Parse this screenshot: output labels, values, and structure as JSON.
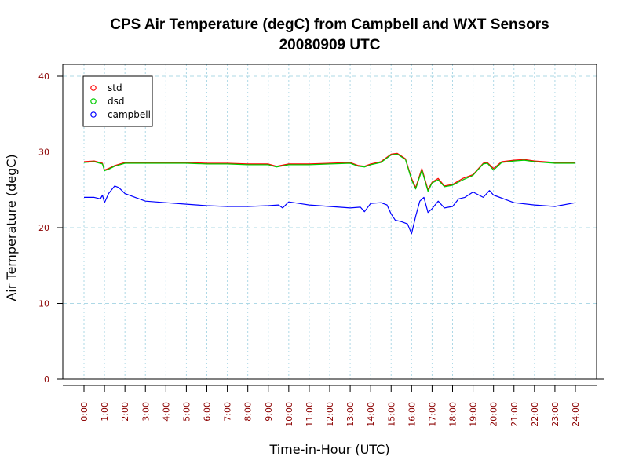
{
  "chart_data": {
    "type": "line",
    "title": "CPS Air Temperature (degC) from Campbell and WXT Sensors",
    "subtitle": "20080909  UTC",
    "xlabel": "Time-in-Hour (UTC)",
    "ylabel": "Air Temperature (degC)",
    "xlim": [
      0,
      24
    ],
    "ylim": [
      0,
      40
    ],
    "grid": true,
    "legend_position": "top-left",
    "x_tick_labels": [
      "0:00",
      "1:00",
      "2:00",
      "3:00",
      "4:00",
      "5:00",
      "6:00",
      "7:00",
      "8:00",
      "9:00",
      "10:00",
      "11:00",
      "12:00",
      "13:00",
      "14:00",
      "15:00",
      "16:00",
      "17:00",
      "18:00",
      "19:00",
      "20:00",
      "21:00",
      "22:00",
      "23:00",
      "24:00"
    ],
    "y_ticks": [
      0,
      10,
      20,
      30,
      40
    ],
    "y_tick_labels": [
      "0",
      "10",
      "20",
      "30",
      "40"
    ],
    "tick_label_color": "#8b0000",
    "grid_color": "#add8e6",
    "series": [
      {
        "name": "std",
        "color": "#ff0000",
        "x": [
          0,
          0.5,
          0.9,
          1.0,
          1.2,
          1.5,
          2.0,
          3.0,
          4.0,
          5.0,
          6.0,
          7.0,
          8.0,
          9.0,
          9.4,
          10.0,
          11.0,
          12.0,
          13.0,
          13.4,
          13.7,
          14.0,
          14.5,
          15.0,
          15.3,
          15.7,
          16.0,
          16.2,
          16.5,
          16.8,
          17.0,
          17.3,
          17.6,
          18.0,
          18.5,
          19.0,
          19.5,
          19.7,
          20.0,
          20.4,
          21.0,
          21.5,
          22.0,
          23.0,
          24.0
        ],
        "values": [
          28.7,
          28.8,
          28.5,
          27.6,
          27.8,
          28.2,
          28.6,
          28.6,
          28.6,
          28.6,
          28.5,
          28.5,
          28.4,
          28.4,
          28.1,
          28.4,
          28.4,
          28.5,
          28.6,
          28.2,
          28.1,
          28.4,
          28.7,
          29.7,
          29.8,
          29.1,
          26.5,
          25.3,
          27.8,
          25.0,
          26.0,
          26.5,
          25.5,
          25.7,
          26.5,
          27.0,
          28.5,
          28.6,
          27.8,
          28.7,
          28.9,
          29.0,
          28.8,
          28.6,
          28.6
        ]
      },
      {
        "name": "dsd",
        "color": "#00cc00",
        "x": [
          0,
          0.5,
          0.9,
          1.0,
          1.2,
          1.5,
          2.0,
          3.0,
          4.0,
          5.0,
          6.0,
          7.0,
          8.0,
          9.0,
          9.4,
          10.0,
          11.0,
          12.0,
          13.0,
          13.4,
          13.7,
          14.0,
          14.5,
          15.0,
          15.3,
          15.7,
          16.0,
          16.2,
          16.5,
          16.8,
          17.0,
          17.3,
          17.6,
          18.0,
          18.5,
          19.0,
          19.5,
          19.7,
          20.0,
          20.4,
          21.0,
          21.5,
          22.0,
          23.0,
          24.0
        ],
        "values": [
          28.6,
          28.7,
          28.4,
          27.5,
          27.7,
          28.1,
          28.5,
          28.5,
          28.5,
          28.5,
          28.4,
          28.4,
          28.3,
          28.3,
          28.0,
          28.3,
          28.3,
          28.4,
          28.5,
          28.1,
          28.0,
          28.3,
          28.6,
          29.6,
          29.7,
          29.0,
          26.3,
          25.1,
          27.6,
          24.8,
          25.9,
          26.3,
          25.4,
          25.6,
          26.3,
          26.9,
          28.4,
          28.5,
          27.6,
          28.6,
          28.8,
          28.9,
          28.7,
          28.5,
          28.5
        ]
      },
      {
        "name": "campbell",
        "color": "#0000ff",
        "x": [
          0,
          0.5,
          0.8,
          0.9,
          1.0,
          1.2,
          1.5,
          1.7,
          2.0,
          2.5,
          3.0,
          4.0,
          5.0,
          6.0,
          7.0,
          8.0,
          9.0,
          9.5,
          9.7,
          10.0,
          11.0,
          12.0,
          13.0,
          13.5,
          13.7,
          14.0,
          14.5,
          14.8,
          15.0,
          15.2,
          15.5,
          15.8,
          16.0,
          16.2,
          16.4,
          16.6,
          16.8,
          17.0,
          17.3,
          17.6,
          18.0,
          18.3,
          18.6,
          19.0,
          19.5,
          19.8,
          20.0,
          20.5,
          21.0,
          22.0,
          23.0,
          24.0
        ],
        "values": [
          24.0,
          24.0,
          23.8,
          24.3,
          23.3,
          24.5,
          25.5,
          25.3,
          24.5,
          24.0,
          23.5,
          23.3,
          23.1,
          22.9,
          22.8,
          22.8,
          22.9,
          23.0,
          22.6,
          23.4,
          23.0,
          22.8,
          22.6,
          22.7,
          22.1,
          23.2,
          23.3,
          23.0,
          21.8,
          21.0,
          20.8,
          20.5,
          19.2,
          21.5,
          23.5,
          24.0,
          22.0,
          22.5,
          23.5,
          22.6,
          22.8,
          23.8,
          24.0,
          24.7,
          24.0,
          24.9,
          24.3,
          23.8,
          23.3,
          23.0,
          22.8,
          23.3
        ]
      }
    ]
  }
}
